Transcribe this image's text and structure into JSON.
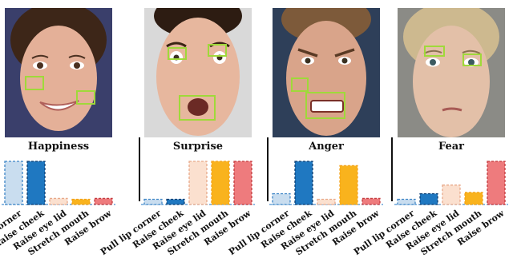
{
  "chart_data": [
    {
      "type": "bar",
      "title": "Happiness",
      "categories": [
        "Pull lip corner",
        "Raise cheek",
        "Raise eye lid",
        "Stretch mouth",
        "Raise brow"
      ],
      "values": [
        1.0,
        1.0,
        0.14,
        0.12,
        0.14
      ],
      "ylim": [
        0,
        1
      ],
      "grid": false
    },
    {
      "type": "bar",
      "title": "Surprise",
      "categories": [
        "Pull lip corner",
        "Raise cheek",
        "Raise eye lid",
        "Stretch mouth",
        "Raise brow"
      ],
      "values": [
        0.12,
        0.12,
        1.0,
        1.0,
        1.0
      ],
      "ylim": [
        0,
        1
      ],
      "grid": false
    },
    {
      "type": "bar",
      "title": "Anger",
      "categories": [
        "Pull lip corner",
        "Raise cheek",
        "Raise eye lid",
        "Stretch mouth",
        "Raise brow"
      ],
      "values": [
        0.25,
        1.0,
        0.12,
        0.9,
        0.14
      ],
      "ylim": [
        0,
        1
      ],
      "grid": false
    },
    {
      "type": "bar",
      "title": "Fear",
      "categories": [
        "Pull lip corner",
        "Raise cheek",
        "Raise eye lid",
        "Stretch mouth",
        "Raise brow"
      ],
      "values": [
        0.12,
        0.25,
        0.45,
        0.28,
        1.0
      ],
      "ylim": [
        0,
        1
      ],
      "grid": false
    }
  ],
  "bar_styles": [
    {
      "fill": "#c9ddef",
      "stroke": "#3f86c6"
    },
    {
      "fill": "#1f78c1",
      "stroke": "#0d3f73"
    },
    {
      "fill": "#fbe0cf",
      "stroke": "#e8a98a"
    },
    {
      "fill": "#f9b31d",
      "stroke": "#f3a21a"
    },
    {
      "fill": "#ee7b7d",
      "stroke": "#c43b3f"
    }
  ],
  "photos": [
    {
      "icon": "happy-face-photo",
      "background": "#3a3f6b",
      "skin": "#e4b098",
      "hair": "#3d2618"
    },
    {
      "icon": "surprised-face-photo",
      "background": "#d9d9d9",
      "skin": "#e7b79e",
      "hair": "#2d1c12"
    },
    {
      "icon": "angry-face-photo",
      "background": "#2e3f59",
      "skin": "#d9a48a",
      "hair": "#7d5a3a"
    },
    {
      "icon": "fearful-face-photo",
      "background": "#8b8b86",
      "skin": "#e3c0a8",
      "hair": "#cdb98f"
    }
  ],
  "highlight_color": "#9fd93a"
}
